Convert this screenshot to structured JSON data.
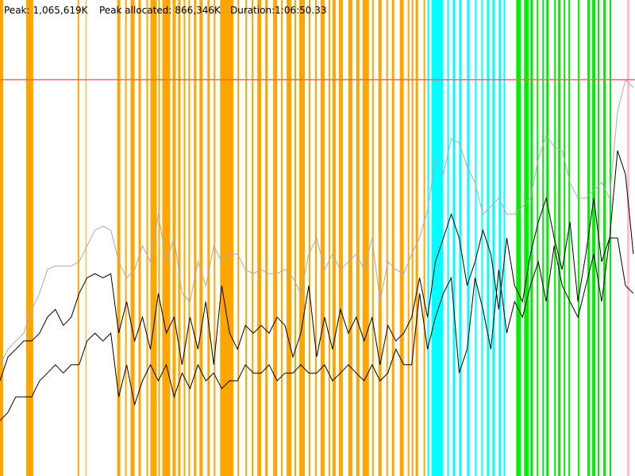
{
  "chart_data": {
    "type": "memory-timeline",
    "stats": [
      {
        "label": "Peak:",
        "value": {
          "value": 1065619,
          "label": "1,065,619K"
        }
      },
      {
        "label": "Peak allocated:",
        "value": {
          "value": 866346,
          "label": "866,346K"
        }
      },
      {
        "label": "Duration:",
        "value": "1:06:50.33"
      }
    ],
    "peak_color": "#ff6060",
    "xlim": [
      0,
      4010.33
    ],
    "ylim": [
      0,
      1280000
    ],
    "bands": [
      {
        "color": "#ffa500",
        "spans": [
          [
            0,
            20
          ],
          [
            165,
            210
          ],
          [
            490,
            500
          ],
          [
            540,
            545
          ],
          [
            740,
            760
          ],
          [
            790,
            800
          ],
          [
            825,
            850
          ],
          [
            875,
            890
          ],
          [
            925,
            935
          ],
          [
            950,
            990
          ],
          [
            1000,
            1010
          ],
          [
            1025,
            1075
          ],
          [
            1090,
            1110
          ],
          [
            1125,
            1140
          ],
          [
            1160,
            1170
          ],
          [
            1190,
            1200
          ],
          [
            1225,
            1240
          ],
          [
            1260,
            1280
          ],
          [
            1310,
            1325
          ],
          [
            1350,
            1360
          ],
          [
            1390,
            1475
          ],
          [
            1500,
            1510
          ],
          [
            1550,
            1560
          ],
          [
            1590,
            1600
          ],
          [
            1625,
            1650
          ],
          [
            1675,
            1690
          ],
          [
            1725,
            1750
          ],
          [
            1775,
            1785
          ],
          [
            1810,
            1840
          ],
          [
            1860,
            1870
          ],
          [
            1890,
            1925
          ],
          [
            1950,
            1960
          ],
          [
            1990,
            2000
          ],
          [
            2025,
            2050
          ],
          [
            2075,
            2085
          ],
          [
            2100,
            2120
          ],
          [
            2140,
            2165
          ],
          [
            2200,
            2225
          ],
          [
            2250,
            2270
          ],
          [
            2290,
            2330
          ],
          [
            2350,
            2360
          ],
          [
            2390,
            2410
          ],
          [
            2440,
            2450
          ],
          [
            2475,
            2490
          ],
          [
            2525,
            2550
          ],
          [
            2575,
            2585
          ],
          [
            2600,
            2610
          ],
          [
            2625,
            2640
          ],
          [
            2675,
            2685
          ]
        ]
      },
      {
        "color": "#00ffff",
        "spans": [
          [
            2700,
            2710
          ],
          [
            2725,
            2800
          ],
          [
            2825,
            2835
          ],
          [
            2860,
            2875
          ],
          [
            2900,
            2915
          ],
          [
            2950,
            2965
          ],
          [
            3000,
            3010
          ],
          [
            3040,
            3050
          ],
          [
            3075,
            3090
          ],
          [
            3110,
            3125
          ],
          [
            3150,
            3165
          ],
          [
            3180,
            3190
          ]
        ]
      },
      {
        "color": "#00ee00",
        "spans": [
          [
            3260,
            3290
          ],
          [
            3310,
            3340
          ],
          [
            3350,
            3365
          ],
          [
            3390,
            3400
          ],
          [
            3425,
            3435
          ],
          [
            3450,
            3465
          ],
          [
            3500,
            3510
          ],
          [
            3525,
            3540
          ],
          [
            3560,
            3570
          ],
          [
            3590,
            3600
          ],
          [
            3650,
            3660
          ],
          [
            3710,
            3725
          ],
          [
            3740,
            3760
          ],
          [
            3775,
            3785
          ],
          [
            3810,
            3825
          ],
          [
            3850,
            3860
          ]
        ]
      },
      {
        "color": "#ffc0cb",
        "spans": [
          [
            3960,
            3975
          ]
        ]
      }
    ],
    "x": [
      0,
      50,
      100,
      150,
      200,
      250,
      300,
      350,
      400,
      450,
      500,
      550,
      600,
      650,
      700,
      750,
      800,
      850,
      900,
      950,
      1000,
      1050,
      1100,
      1150,
      1200,
      1250,
      1300,
      1350,
      1400,
      1450,
      1500,
      1550,
      1600,
      1650,
      1700,
      1750,
      1800,
      1850,
      1900,
      1950,
      2000,
      2050,
      2100,
      2150,
      2200,
      2250,
      2300,
      2350,
      2400,
      2450,
      2500,
      2550,
      2600,
      2650,
      2700,
      2750,
      2800,
      2850,
      2900,
      2950,
      3000,
      3050,
      3100,
      3150,
      3200,
      3250,
      3300,
      3350,
      3400,
      3450,
      3500,
      3550,
      3600,
      3650,
      3700,
      3750,
      3800,
      3850,
      3900,
      3950,
      4000
    ],
    "series": [
      {
        "color": "#aaaaaa",
        "values": [
          299000,
          341000,
          363000,
          384000,
          448000,
          491000,
          555000,
          565000,
          565000,
          565000,
          576000,
          619000,
          661000,
          672000,
          661000,
          576000,
          533000,
          555000,
          619000,
          576000,
          704000,
          576000,
          640000,
          491000,
          469000,
          576000,
          512000,
          619000,
          576000,
          597000,
          597000,
          555000,
          544000,
          555000,
          544000,
          544000,
          555000,
          533000,
          491000,
          597000,
          640000,
          555000,
          597000,
          555000,
          576000,
          597000,
          555000,
          640000,
          469000,
          576000,
          555000,
          544000,
          597000,
          640000,
          715000,
          853000,
          811000,
          907000,
          896000,
          832000,
          789000,
          704000,
          725000,
          747000,
          704000,
          704000,
          725000,
          747000,
          853000,
          917000,
          885000,
          875000,
          789000,
          747000,
          747000,
          768000,
          789000,
          747000,
          981000,
          1065000,
          1045000
        ]
      },
      {
        "color": "#000000",
        "values": [
          256000,
          320000,
          341000,
          363000,
          363000,
          384000,
          427000,
          448000,
          405000,
          427000,
          491000,
          533000,
          544000,
          533000,
          544000,
          384000,
          469000,
          363000,
          427000,
          341000,
          491000,
          384000,
          427000,
          299000,
          427000,
          341000,
          469000,
          299000,
          512000,
          384000,
          341000,
          405000,
          384000,
          405000,
          384000,
          427000,
          405000,
          320000,
          384000,
          512000,
          320000,
          427000,
          341000,
          448000,
          384000,
          427000,
          363000,
          427000,
          299000,
          405000,
          363000,
          384000,
          427000,
          533000,
          427000,
          576000,
          640000,
          704000,
          640000,
          512000,
          576000,
          661000,
          597000,
          448000,
          640000,
          512000,
          469000,
          597000,
          683000,
          747000,
          640000,
          555000,
          683000,
          469000,
          597000,
          747000,
          576000,
          640000,
          875000,
          811000,
          597000
        ]
      },
      {
        "color": "#000000",
        "values": [
          149000,
          171000,
          213000,
          213000,
          213000,
          256000,
          277000,
          299000,
          277000,
          299000,
          299000,
          363000,
          384000,
          363000,
          384000,
          213000,
          299000,
          192000,
          256000,
          299000,
          256000,
          299000,
          213000,
          277000,
          235000,
          299000,
          256000,
          277000,
          235000,
          256000,
          256000,
          299000,
          277000,
          277000,
          299000,
          256000,
          277000,
          277000,
          299000,
          277000,
          277000,
          299000,
          256000,
          277000,
          299000,
          277000,
          256000,
          299000,
          256000,
          277000,
          341000,
          299000,
          299000,
          491000,
          341000,
          427000,
          491000,
          533000,
          277000,
          341000,
          533000,
          448000,
          341000,
          555000,
          384000,
          469000,
          427000,
          512000,
          576000,
          469000,
          619000,
          512000,
          469000,
          427000,
          512000,
          597000,
          469000,
          640000,
          640000,
          512000,
          491000
        ]
      }
    ]
  }
}
